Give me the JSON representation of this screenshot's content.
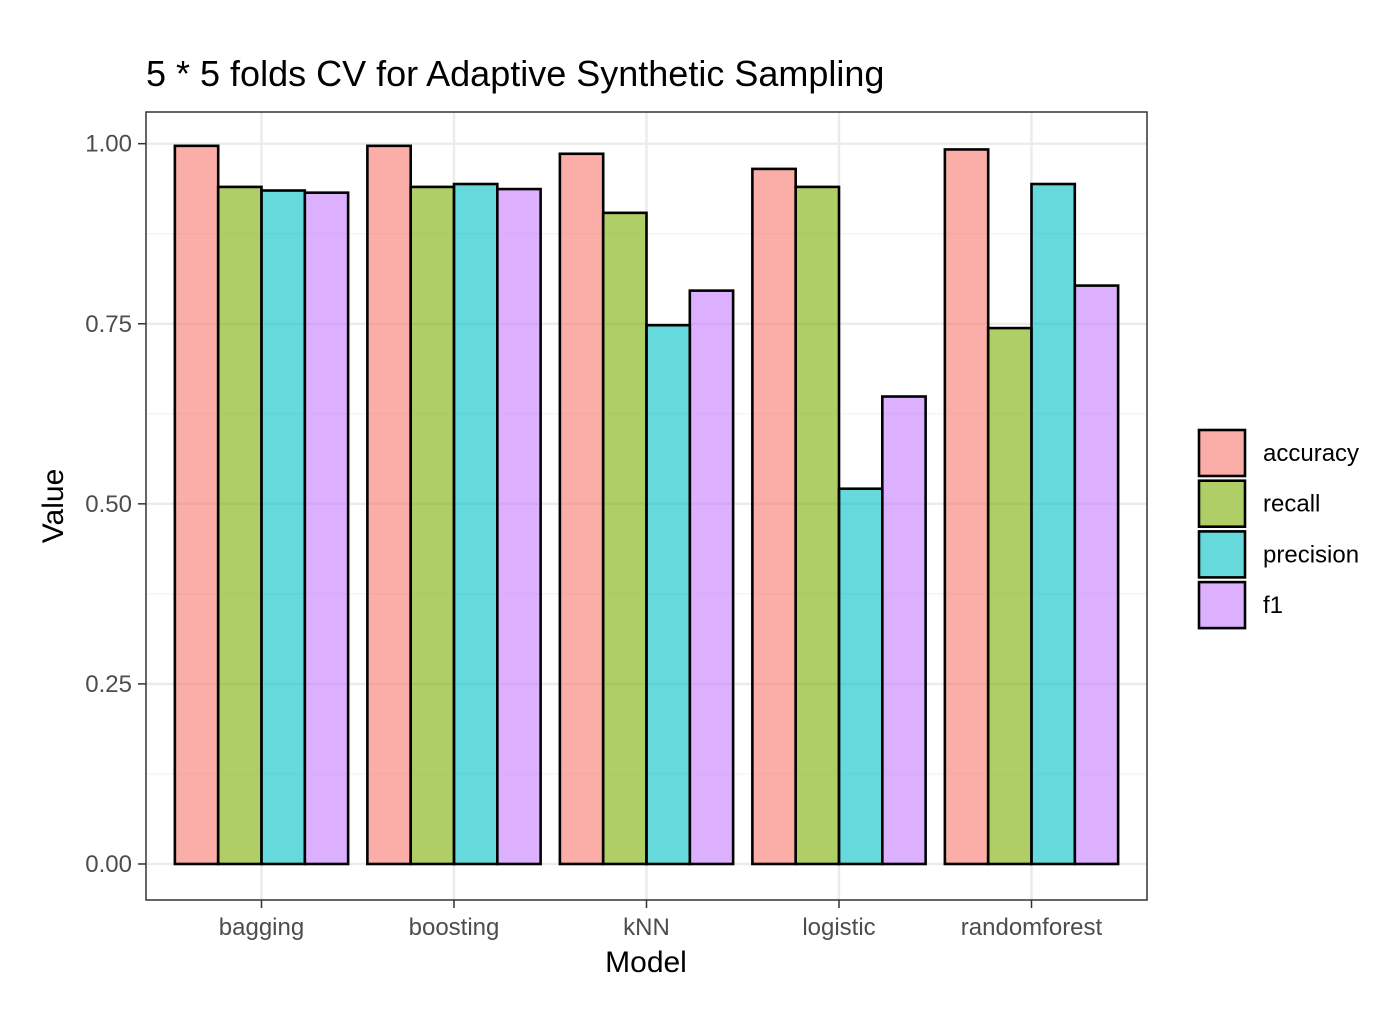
{
  "chart_data": {
    "type": "bar",
    "title": "5 * 5 folds CV for Adaptive Synthetic Sampling",
    "xlabel": "Model",
    "ylabel": "Value",
    "categories": [
      "bagging",
      "boosting",
      "kNN",
      "logistic",
      "randomforest"
    ],
    "series": [
      {
        "name": "accuracy",
        "color": "#F8766D",
        "values": [
          0.997,
          0.997,
          0.986,
          0.965,
          0.992
        ]
      },
      {
        "name": "recall",
        "color": "#7CAE00",
        "values": [
          0.94,
          0.94,
          0.904,
          0.94,
          0.744
        ]
      },
      {
        "name": "precision",
        "color": "#00BFC4",
        "values": [
          0.935,
          0.944,
          0.748,
          0.521,
          0.944
        ]
      },
      {
        "name": "f1",
        "color": "#C77CFF",
        "values": [
          0.932,
          0.937,
          0.796,
          0.649,
          0.803
        ]
      }
    ],
    "ylim": [
      -0.05,
      1.044
    ],
    "yticks": [
      0,
      0.25,
      0.5,
      0.75,
      1
    ],
    "ytick_labels": [
      "0.00",
      "0.25",
      "0.50",
      "0.75",
      "1.00"
    ],
    "grid": true,
    "bar_opacity": 0.6,
    "legend_position": "right"
  }
}
